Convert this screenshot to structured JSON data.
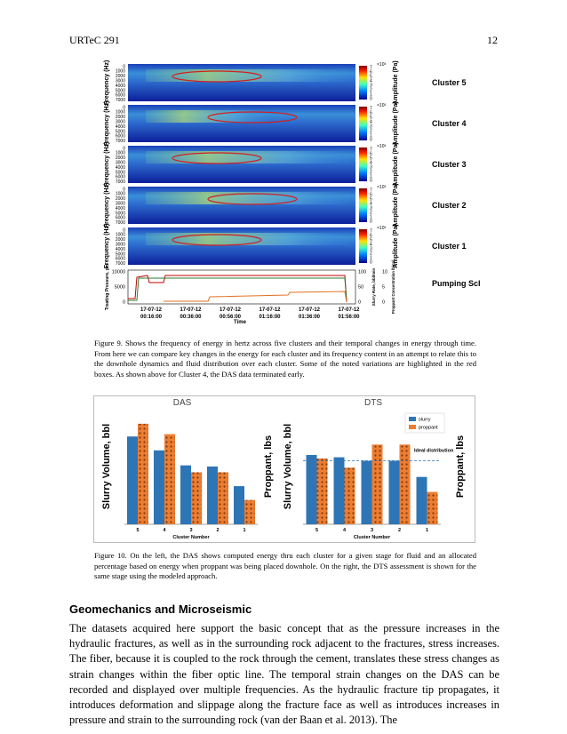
{
  "header": {
    "left": "URTeC 291",
    "right": "12"
  },
  "figure_9": {
    "frequency_label": "Frequency (Hz)",
    "frequency_ticks": [
      0,
      1000,
      2000,
      3000,
      4000,
      5000,
      6000,
      7000
    ],
    "amplitude_label": "Amplitude (Pa)",
    "colorbar_ticks": [
      7,
      6,
      5,
      4,
      3,
      2,
      1,
      0
    ],
    "colorbar_exponent": "×10³",
    "clusters": [
      "Cluster 5",
      "Cluster 4",
      "Cluster 3",
      "Cluster 2",
      "Cluster 1"
    ],
    "pressure_label": "Treating Pressure, psi",
    "pressure_ticks": [
      10000,
      5000,
      0
    ],
    "slurry_label": "Slurry Rate, bbl/min",
    "slurry_ticks": [
      100,
      50,
      0
    ],
    "proppant_label": "Proppant Concentration lb/gal",
    "proppant_ticks": [
      10,
      5,
      0
    ],
    "schedule_label": "Pumping Schedule",
    "time_ticks": [
      {
        "date": "17-07-12",
        "time": "00:16:00"
      },
      {
        "date": "17-07-12",
        "time": "00:36:00"
      },
      {
        "date": "17-07-12",
        "time": "00:56:00"
      },
      {
        "date": "17-07-12",
        "time": "01:16:00"
      },
      {
        "date": "17-07-12",
        "time": "01:36:00"
      },
      {
        "date": "17-07-12",
        "time": "01:56:00"
      }
    ],
    "time_label": "Time",
    "caption": "Figure 9. Shows the frequency of energy in hertz across five clusters and their temporal changes in energy through time. From here we can compare key changes in the energy for each cluster and its frequency content in an attempt to relate this to the downhole dynamics and fluid distribution over each cluster. Some of the noted variations are highlighted in the red boxes. As shown above for Cluster 4, the DAS data terminated early."
  },
  "figure_10": {
    "charts": [
      {
        "type": "bar",
        "title": "DAS",
        "y_label": "Slurry Volume, bbl",
        "y2_label": "Proppant, lbs",
        "x_label": "Cluster Number",
        "categories": [
          "5",
          "4",
          "3",
          "2",
          "1"
        ],
        "ylim": [
          0,
          100
        ],
        "series": [
          {
            "name": "slurry",
            "color": "#2e75b6",
            "values": [
              76,
              64,
              51,
              50,
              33
            ]
          },
          {
            "name": "proppant",
            "color": "#ed7d31",
            "values": [
              87,
              78,
              45,
              45,
              21
            ]
          }
        ]
      },
      {
        "type": "bar",
        "title": "DTS",
        "y_label": "Slurry Volume, bbl",
        "y2_label": "Proppant, lbs",
        "x_label": "Cluster Number",
        "categories": [
          "5",
          "4",
          "3",
          "2",
          "1"
        ],
        "ylim": [
          0,
          100
        ],
        "series": [
          {
            "name": "slurry",
            "color": "#2e75b6",
            "values": [
              60,
              58,
              55,
              55,
              41
            ]
          },
          {
            "name": "proppant",
            "color": "#ed7d31",
            "values": [
              57,
              49,
              69,
              69,
              28
            ]
          }
        ],
        "reference": {
          "label": "Ideal distribution",
          "value": 55
        },
        "legend": true
      }
    ],
    "caption": "Figure 10. On the left, the DAS shows computed energy thru each cluster for a given stage for fluid and an allocated percentage based on energy when proppant was being placed downhole. On the right, the DTS assessment is shown for the same stage using the modeled approach."
  },
  "section": {
    "heading": "Geomechanics and Microseismic",
    "paragraph": "The datasets acquired here support the basic concept that as the pressure increases in the hydraulic fractures, as well as in the surrounding rock adjacent to the fractures, stress increases.  The fiber, because it is coupled to the rock through the cement, translates these stress changes as strain changes within the fiber optic line. The temporal strain changes on the DAS can be recorded and displayed over multiple frequencies. As the hydraulic fracture tip propagates, it introduces deformation and slippage along the fracture face as well as introduces increases in pressure and strain to the surrounding rock (van der Baan et al. 2013). The"
  }
}
